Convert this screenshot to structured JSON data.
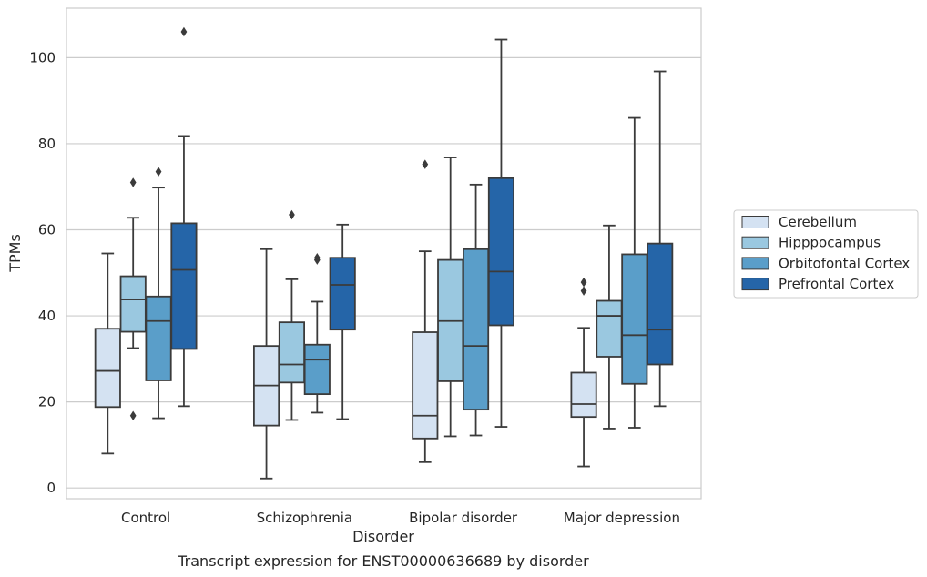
{
  "caption": "Transcript expression for ENST00000636689 by disorder",
  "chart_data": {
    "type": "box",
    "xlabel": "Disorder",
    "ylabel": "TPMs",
    "ylim": [
      -2.5,
      111.5
    ],
    "yticks": [
      0,
      20,
      40,
      60,
      80,
      100
    ],
    "grid": "horizontal",
    "legend_placement": "right",
    "categories": [
      "Control",
      "Schizophrenia",
      "Bipolar disorder",
      "Major depression"
    ],
    "series": [
      {
        "name": "Cerebellum",
        "color": "#d4e2f2",
        "boxes": [
          {
            "whisker_low": 8,
            "q1": 18.8,
            "median": 27.2,
            "q3": 37,
            "whisker_high": 54.5,
            "outliers": []
          },
          {
            "whisker_low": 2.2,
            "q1": 14.5,
            "median": 23.8,
            "q3": 33,
            "whisker_high": 55.5,
            "outliers": []
          },
          {
            "whisker_low": 6,
            "q1": 11.5,
            "median": 16.8,
            "q3": 36.2,
            "whisker_high": 55,
            "outliers": [
              75.2
            ]
          },
          {
            "whisker_low": 5,
            "q1": 16.5,
            "median": 19.5,
            "q3": 26.8,
            "whisker_high": 37.2,
            "outliers": [
              45.8,
              47.8
            ]
          }
        ]
      },
      {
        "name": "Hipppocampus",
        "color": "#9ac8e0",
        "boxes": [
          {
            "whisker_low": 32.5,
            "q1": 36.3,
            "median": 43.8,
            "q3": 49.2,
            "whisker_high": 62.8,
            "outliers": [
              71,
              16.8
            ]
          },
          {
            "whisker_low": 15.8,
            "q1": 24.5,
            "median": 28.7,
            "q3": 38.5,
            "whisker_high": 48.5,
            "outliers": [
              63.5
            ]
          },
          {
            "whisker_low": 12,
            "q1": 24.8,
            "median": 38.8,
            "q3": 53,
            "whisker_high": 76.8,
            "outliers": []
          },
          {
            "whisker_low": 13.8,
            "q1": 30.5,
            "median": 40,
            "q3": 43.5,
            "whisker_high": 61,
            "outliers": []
          }
        ]
      },
      {
        "name": "Orbitofontal Cortex",
        "color": "#5a9ec9",
        "boxes": [
          {
            "whisker_low": 16.2,
            "q1": 25,
            "median": 38.8,
            "q3": 44.5,
            "whisker_high": 69.8,
            "outliers": [
              73.5
            ]
          },
          {
            "whisker_low": 17.5,
            "q1": 21.8,
            "median": 29.8,
            "q3": 33.3,
            "whisker_high": 43.3,
            "outliers": [
              53,
              53.5
            ]
          },
          {
            "whisker_low": 12.2,
            "q1": 18.2,
            "median": 33,
            "q3": 55.5,
            "whisker_high": 70.5,
            "outliers": []
          },
          {
            "whisker_low": 14,
            "q1": 24.2,
            "median": 35.5,
            "q3": 54.3,
            "whisker_high": 86,
            "outliers": []
          }
        ]
      },
      {
        "name": "Prefrontal Cortex",
        "color": "#2565a8",
        "boxes": [
          {
            "whisker_low": 19,
            "q1": 32.3,
            "median": 50.7,
            "q3": 61.5,
            "whisker_high": 81.8,
            "outliers": [
              106
            ]
          },
          {
            "whisker_low": 16,
            "q1": 36.8,
            "median": 47.2,
            "q3": 53.5,
            "whisker_high": 61.2,
            "outliers": []
          },
          {
            "whisker_low": 14.2,
            "q1": 37.8,
            "median": 50.3,
            "q3": 72,
            "whisker_high": 104.2,
            "outliers": []
          },
          {
            "whisker_low": 19,
            "q1": 28.7,
            "median": 36.8,
            "q3": 56.8,
            "whisker_high": 96.8,
            "outliers": []
          }
        ]
      }
    ]
  }
}
